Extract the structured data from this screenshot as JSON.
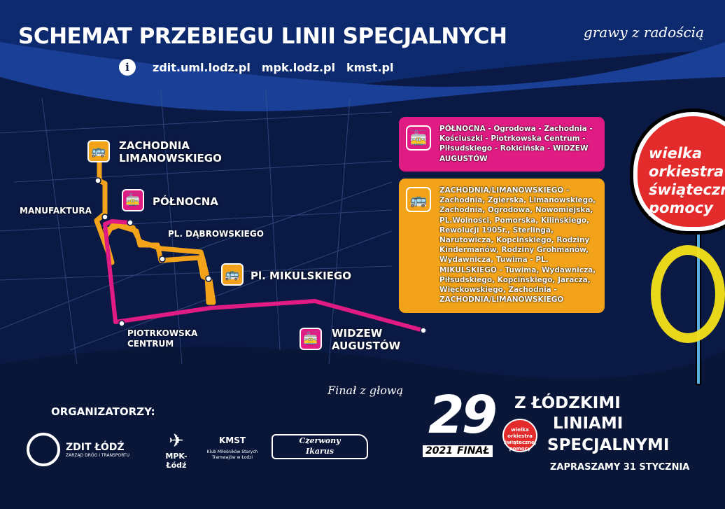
{
  "header": {
    "title": "SCHEMAT PRZEBIEGU LINII SPECJALNYCH",
    "slogan": "grawy z radością",
    "info_icon": "info-icon",
    "links": [
      "zdit.uml.lodz.pl",
      "mpk.lodz.pl",
      "kmst.pl"
    ]
  },
  "colors": {
    "background": "#0b1a45",
    "tram_line": "#e01b84",
    "bus_line": "#f3a31a"
  },
  "routes": {
    "tram": {
      "icon": "tram-icon",
      "text": "PÓŁNOCNA - Ogrodowa -  Zachodnia - Kościuszki - Piotrkowska Centrum - Piłsudskiego - Rokicińska - WIDZEW AUGUSTÓW"
    },
    "bus": {
      "icon": "bus-icon",
      "text": "ZACHODNIA/LIMANOWSKIEGO - Zachodnia, Zgierska, Limanowskiego, Zachodnia, Ogrodowa, Nowomiejska, PL.Wolności, Pomorska, Kilińskiego, Rewolucji 1905r., Sterlinga, Narutowicza, Kopcińskiego, Rodziny Kindermanów, Rodziny Grohmanów, Wydawnicza, Tuwima - PL. MIKULSKIEGO - Tuwima, Wydawnicza, Piłsudskiego, Kopcińskiego, Jaracza, Więckowskiego, Zachodnia - ZACHODNIA/LIMANOWSKIEGO"
    }
  },
  "stops": {
    "zachodnia": [
      "ZACHODNIA",
      "LIMANOWSKIEGO"
    ],
    "polnocna": "PÓŁNOCNA",
    "manufaktura": "MANUFAKTURA",
    "dabrowskiego": "PL. DĄBROWSKIEGO",
    "mikulskiego": "Pl. MIKULSKIEGO",
    "piotrkowska": [
      "PIOTRKOWSKA",
      "CENTRUM"
    ],
    "widzew": [
      "WIDZEW",
      "AUGUSTÓW"
    ]
  },
  "signature": "Finał z głową",
  "organizers": {
    "label": "ORGANIZATORZY:",
    "zdit": "ZDIT ŁÓDŹ",
    "zdit_sub": "ZARZĄD DRÓG I TRANSPORTU",
    "mpk": "MPK-Łódź",
    "kmst": "KMST",
    "kmst_sub": "Klub Miłośników Starych Tramwajów w Łodzi",
    "ikarus": [
      "Czerwony",
      "Ikarus"
    ]
  },
  "promo": {
    "number": "29",
    "year": "2021",
    "final": "FINAŁ",
    "lines": [
      "Z ŁÓDZKIMI",
      "LINIAMI",
      "SPECJALNYMI"
    ],
    "date": "ZAPRASZAMY 31 STYCZNIA"
  },
  "heart": {
    "text": [
      "wielka orkiestra",
      "świątecznej",
      "pomocy"
    ]
  }
}
